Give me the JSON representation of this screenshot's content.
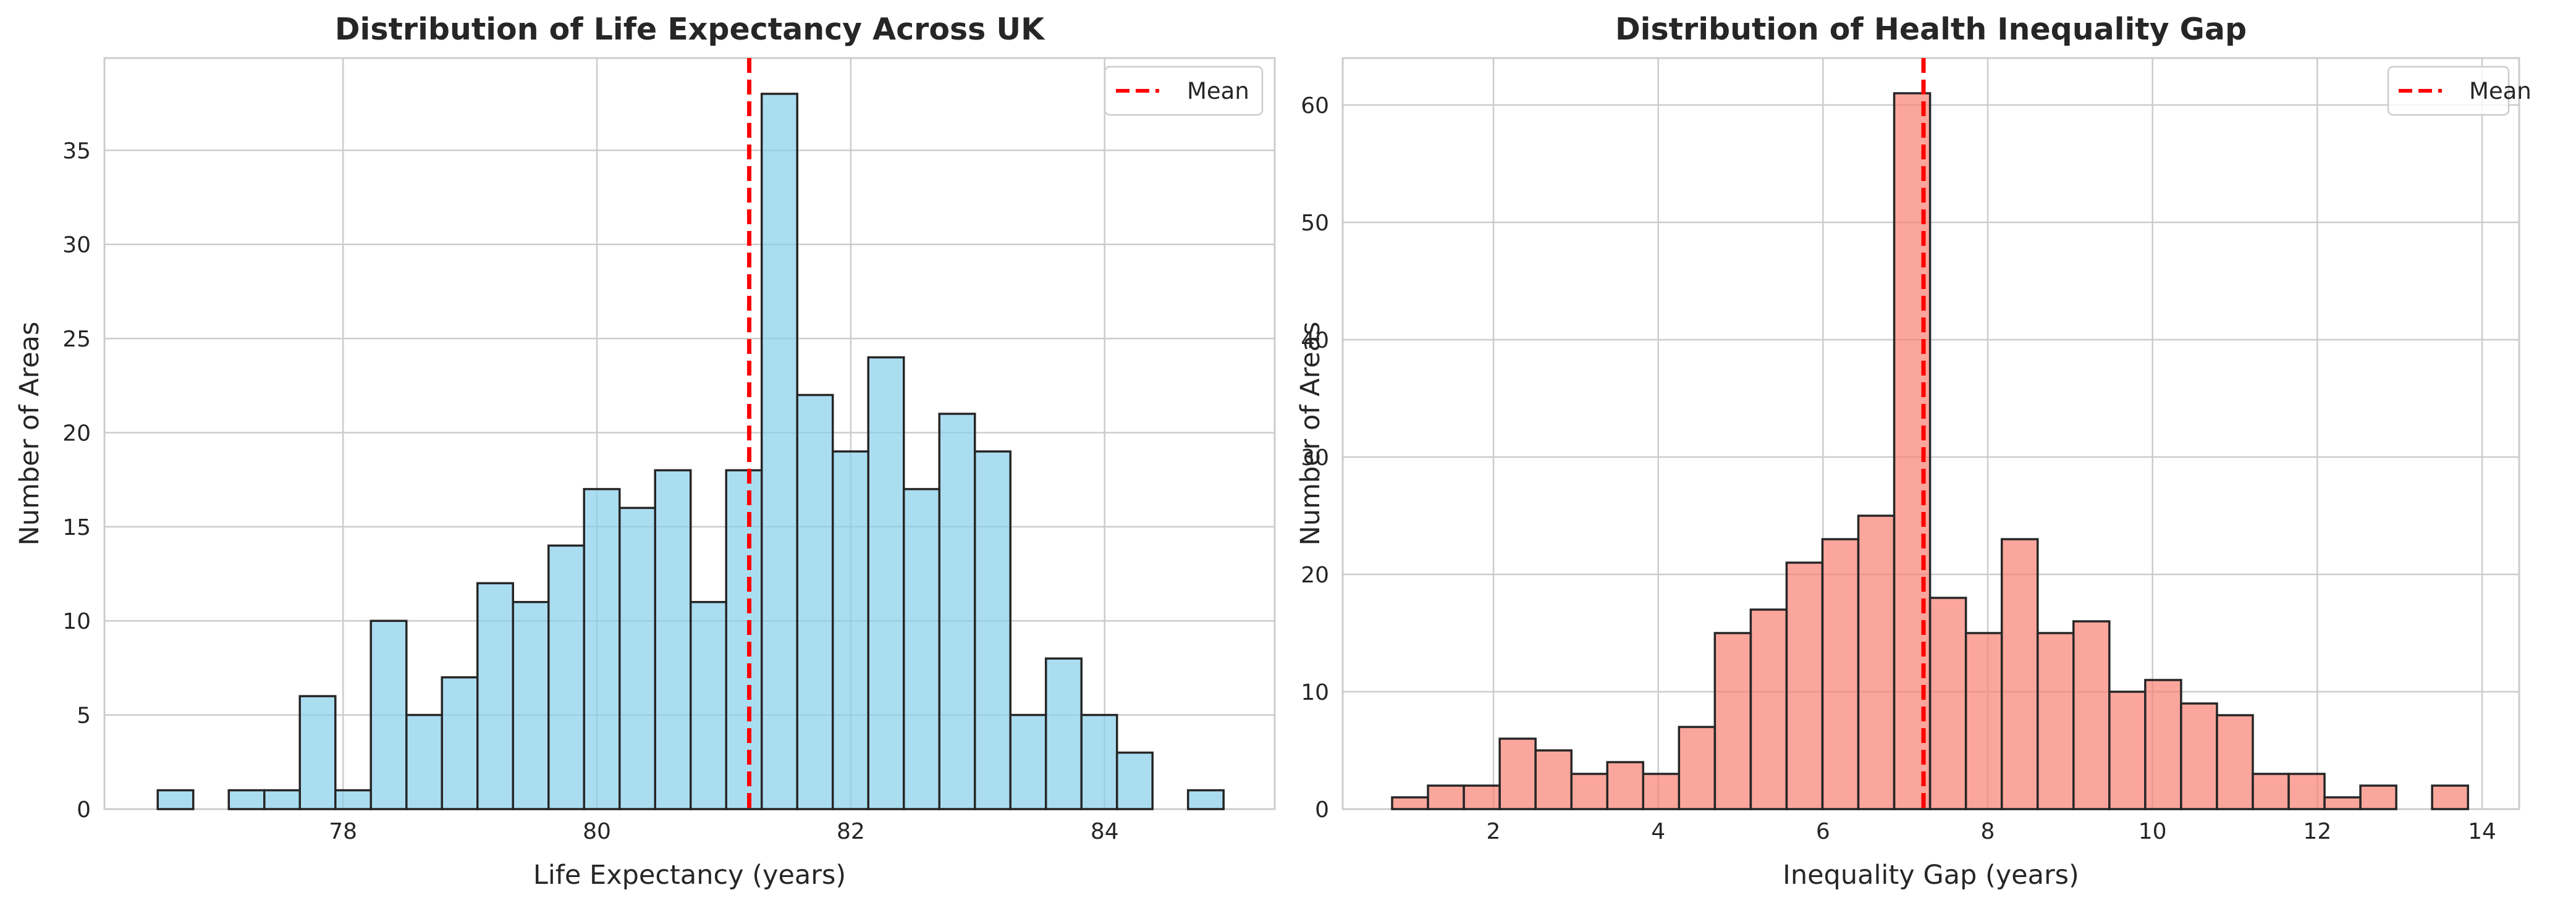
{
  "chart_data": [
    {
      "type": "bar",
      "subtype": "histogram",
      "title": "Distribution of Life Expectancy Across UK",
      "xlabel": "Life Expectancy (years)",
      "ylabel": "Number of Areas",
      "xlim": [
        76.12,
        85.34
      ],
      "ylim": [
        0,
        39.9
      ],
      "xticks": [
        78,
        80,
        82,
        84
      ],
      "yticks": [
        0,
        5,
        10,
        15,
        20,
        25,
        30,
        35
      ],
      "bin_start": 76.54,
      "bin_width": 0.2799,
      "counts": [
        1,
        0,
        1,
        1,
        6,
        1,
        10,
        5,
        7,
        12,
        11,
        14,
        17,
        16,
        18,
        11,
        18,
        38,
        22,
        19,
        24,
        17,
        21,
        19,
        5,
        8,
        5,
        3,
        0,
        1
      ],
      "mean": 81.2,
      "color": "#87ceeb",
      "mean_color": "#ff0000",
      "legend": {
        "label": "Mean",
        "position": "upper right"
      },
      "grid": true
    },
    {
      "type": "bar",
      "subtype": "histogram",
      "title": "Distribution of Health Inequality Gap",
      "xlabel": "Inequality Gap (years)",
      "ylabel": "Number of Areas",
      "xlim": [
        0.17,
        14.45
      ],
      "ylim": [
        0,
        64.0
      ],
      "xticks": [
        2,
        4,
        6,
        8,
        10,
        12,
        14
      ],
      "yticks": [
        0,
        10,
        20,
        30,
        40,
        50,
        60
      ],
      "bin_start": 0.77,
      "bin_width": 0.4353,
      "counts": [
        1,
        2,
        2,
        6,
        5,
        3,
        4,
        3,
        7,
        15,
        17,
        21,
        23,
        25,
        61,
        18,
        15,
        23,
        15,
        16,
        10,
        11,
        9,
        8,
        3,
        3,
        1,
        2,
        0,
        2
      ],
      "mean": 7.22,
      "color": "#fa8072",
      "mean_color": "#ff0000",
      "legend": {
        "label": "Mean",
        "position": "upper right"
      },
      "grid": true
    }
  ]
}
